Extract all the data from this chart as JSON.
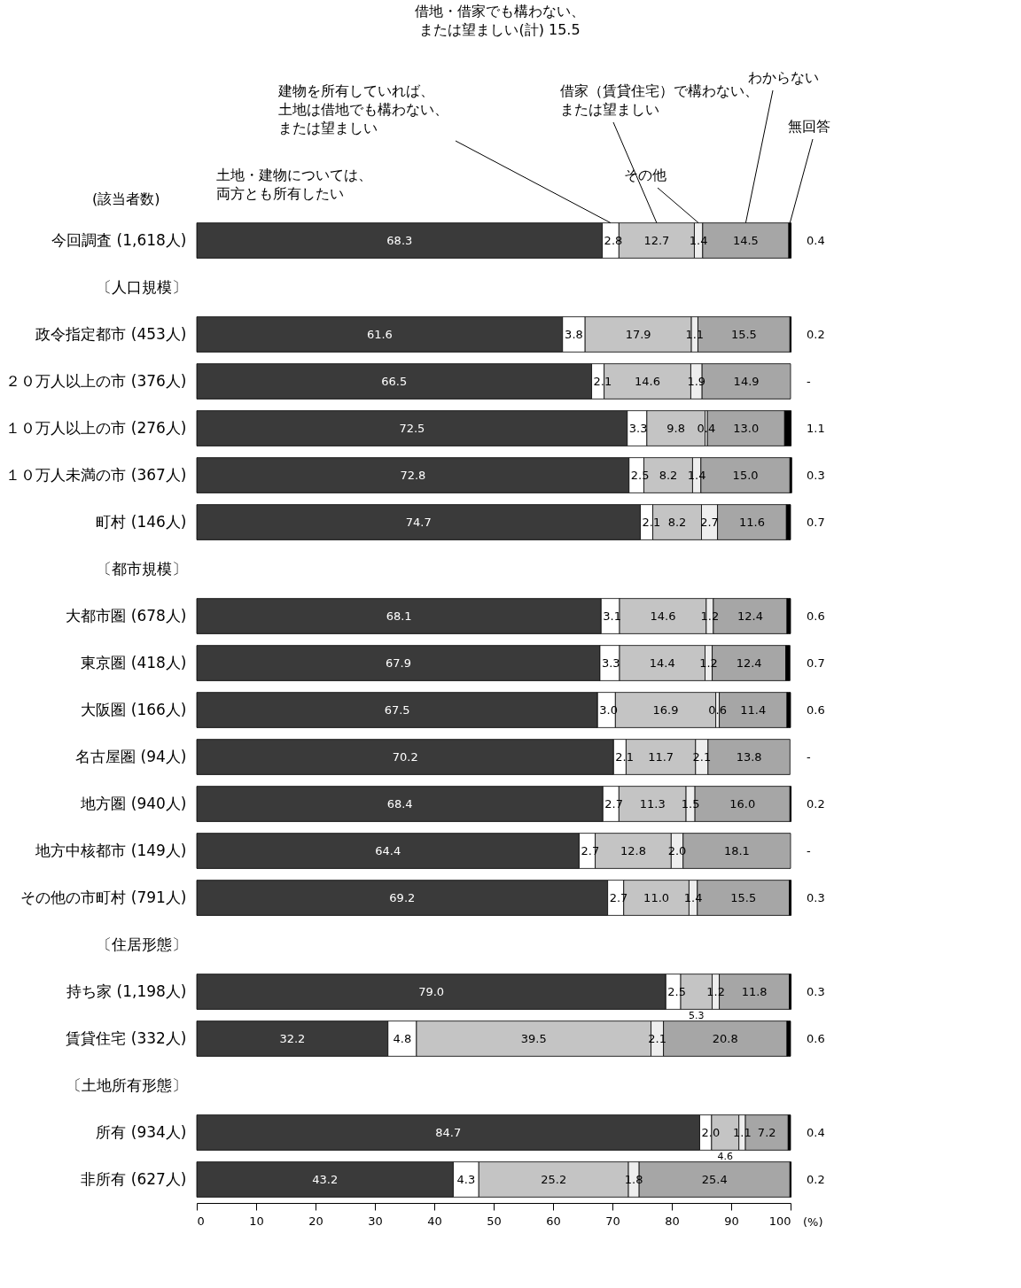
{
  "chart_data": {
    "type": "bar",
    "orientation": "horizontal",
    "stacked": true,
    "data_labels": true,
    "categories": [
      "今回調査 (1,618人)",
      "〔人口規模〕",
      "政令指定都市 (453人)",
      "２０万人以上の市 (376人)",
      "１０万人以上の市 (276人)",
      "１０万人未満の市 (367人)",
      "町村 (146人)",
      "〔都市規模〕",
      "大都市圏 (678人)",
      "東京圏 (418人)",
      "大阪圏 (166人)",
      "名古屋圏 (94人)",
      "地方圏 (940人)",
      "地方中核都市 (149人)",
      "その他の市町村 (791人)",
      "〔住居形態〕",
      "持ち家 (1,198人)",
      "賃貸住宅 (332人)",
      "〔土地所有形態〕",
      "所有 (934人)",
      "非所有 (627人)"
    ],
    "series": [
      {
        "name": "土地・建物については、両方とも所有したい",
        "color": "#3a3a3a",
        "values": [
          68.3,
          null,
          61.6,
          66.5,
          72.5,
          72.8,
          74.7,
          null,
          68.1,
          67.9,
          67.5,
          70.2,
          68.4,
          64.4,
          69.2,
          null,
          79.0,
          32.2,
          null,
          84.7,
          43.2
        ],
        "value_labels": [
          "68.3",
          null,
          "61.6",
          "66.5",
          "72.5",
          "72.8",
          "74.7",
          null,
          "68.1",
          "67.9",
          "67.5",
          "70.2",
          "68.4",
          "64.4",
          "69.2",
          null,
          "79.0",
          "32.2",
          null,
          "84.7",
          "43.2"
        ]
      },
      {
        "name": "建物を所有していれば、土地は借地でも構わない、または望ましい",
        "color": "#ffffff",
        "values": [
          2.8,
          null,
          3.8,
          2.1,
          3.3,
          2.5,
          2.1,
          null,
          3.1,
          3.3,
          3.0,
          2.1,
          2.7,
          2.7,
          2.7,
          null,
          2.5,
          4.8,
          null,
          2.0,
          4.3
        ],
        "value_labels": [
          "2.8",
          null,
          "3.8",
          "2.1",
          "3.3",
          "2.5",
          "2.1",
          null,
          "3.1",
          "3.3",
          "3.0",
          "2.1",
          "2.7",
          "2.7",
          "2.7",
          null,
          "2.5",
          "4.8",
          null,
          "2.0",
          "4.3"
        ]
      },
      {
        "name": "借家（賃貸住宅）で構わない、または望ましい",
        "color": "#c4c4c4",
        "values": [
          12.7,
          null,
          17.9,
          14.6,
          9.8,
          8.2,
          8.2,
          null,
          14.6,
          14.4,
          16.9,
          11.7,
          11.3,
          12.8,
          11.0,
          null,
          5.3,
          39.5,
          null,
          4.6,
          25.2
        ],
        "value_labels": [
          "12.7",
          null,
          "17.9",
          "14.6",
          "9.8",
          "8.2",
          "8.2",
          null,
          "14.6",
          "14.4",
          "16.9",
          "11.7",
          "11.3",
          "12.8",
          "11.0",
          null,
          "5.3",
          "39.5",
          null,
          "4.6",
          "25.2"
        ]
      },
      {
        "name": "その他",
        "color": "#eeeeee",
        "values": [
          1.4,
          null,
          1.1,
          1.9,
          0.4,
          1.4,
          2.7,
          null,
          1.2,
          1.2,
          0.6,
          2.1,
          1.5,
          2.0,
          1.4,
          null,
          1.2,
          2.1,
          null,
          1.1,
          1.8
        ],
        "value_labels": [
          "1.4",
          null,
          "1.1",
          "1.9",
          "0.4",
          "1.4",
          "2.7",
          null,
          "1.2",
          "1.2",
          "0.6",
          "2.1",
          "1.5",
          "2.0",
          "1.4",
          null,
          "1.2",
          "2.1",
          null,
          "1.1",
          "1.8"
        ]
      },
      {
        "name": "わからない",
        "color": "#a6a6a6",
        "values": [
          14.5,
          null,
          15.5,
          14.9,
          13.0,
          15.0,
          11.6,
          null,
          12.4,
          12.4,
          11.4,
          13.8,
          16.0,
          18.1,
          15.5,
          null,
          11.8,
          20.8,
          null,
          7.2,
          25.4
        ],
        "value_labels": [
          "14.5",
          null,
          "15.5",
          "14.9",
          "13.0",
          "15.0",
          "11.6",
          null,
          "12.4",
          "12.4",
          "11.4",
          "13.8",
          "16.0",
          "18.1",
          "15.5",
          null,
          "11.8",
          "20.8",
          null,
          "7.2",
          "25.4"
        ]
      },
      {
        "name": "無回答",
        "color": "#000000",
        "values": [
          0.4,
          null,
          0.2,
          null,
          1.1,
          0.3,
          0.7,
          null,
          0.6,
          0.7,
          0.6,
          null,
          0.2,
          null,
          0.3,
          null,
          0.3,
          0.6,
          null,
          0.4,
          0.2
        ],
        "value_labels": [
          "0.4",
          null,
          "0.2",
          "-",
          "1.1",
          "0.3",
          "0.7",
          null,
          "0.6",
          "0.7",
          "0.6",
          "-",
          "0.2",
          "-",
          "0.3",
          null,
          "0.3",
          "0.6",
          null,
          "0.4",
          "0.2"
        ]
      }
    ],
    "xlim": [
      0,
      100
    ],
    "xticks": [
      0,
      10,
      20,
      30,
      40,
      50,
      60,
      70,
      80,
      90,
      100
    ],
    "xlabel": "(%)",
    "grid": false,
    "annotations": [
      "借地・借家でも構わない、または望ましい(計) 15.5",
      "(該当者数)"
    ]
  }
}
